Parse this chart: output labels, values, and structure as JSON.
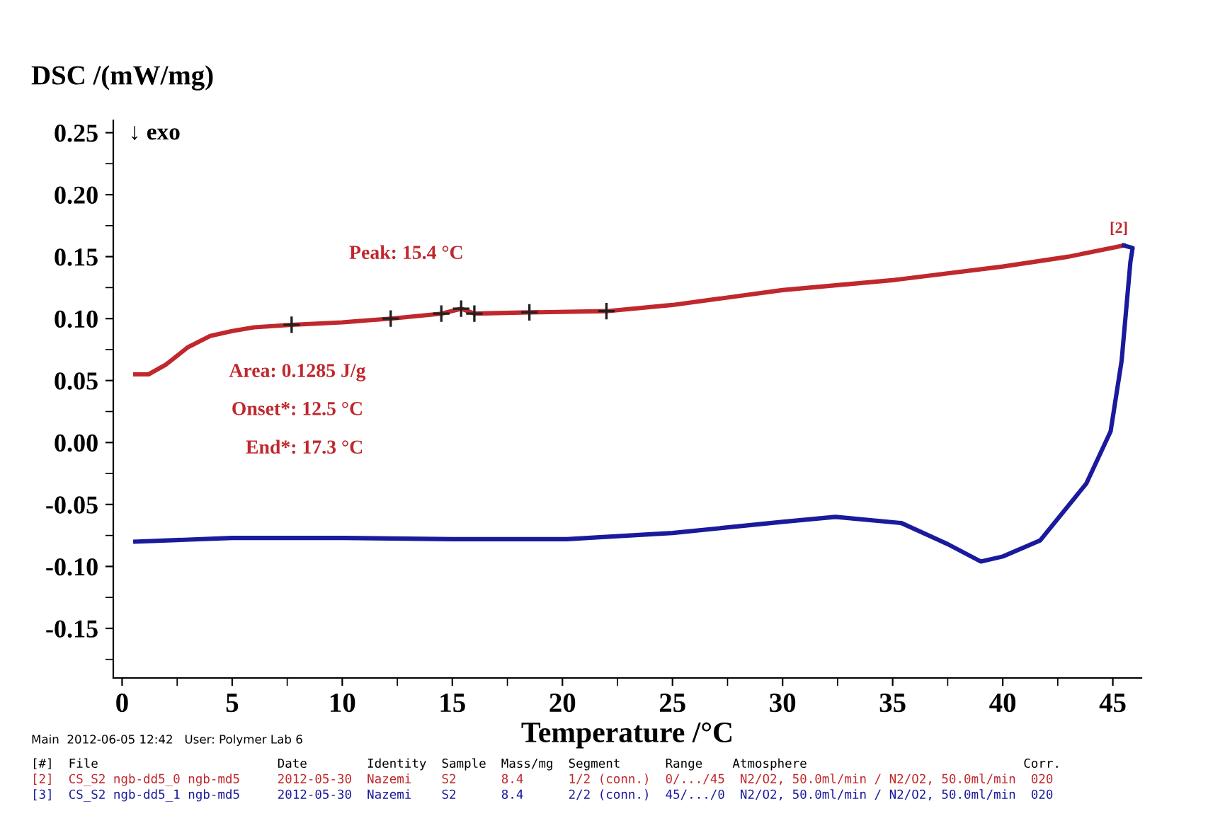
{
  "chart_data": {
    "type": "line",
    "ylabel": "DSC /(mW/mg)",
    "xlabel": "Temperature /°C",
    "xlim": [
      -0.4,
      46.3
    ],
    "ylim": [
      -0.19,
      0.26
    ],
    "xticks": [
      0,
      5,
      10,
      15,
      20,
      25,
      30,
      35,
      40,
      45
    ],
    "yticks": [
      {
        "value": 0.25,
        "label": "0.25"
      },
      {
        "value": 0.2,
        "label": "0.20"
      },
      {
        "value": 0.15,
        "label": "0.15"
      },
      {
        "value": 0.1,
        "label": "0.10"
      },
      {
        "value": 0.05,
        "label": "0.05"
      },
      {
        "value": 0,
        "label": "0.00"
      },
      {
        "value": -0.05,
        "label": "-0.05"
      },
      {
        "value": -0.1,
        "label": "-0.10"
      },
      {
        "value": -0.15,
        "label": "-0.15"
      }
    ],
    "grid": false,
    "legend": false,
    "series": [
      {
        "color": "#c0282d",
        "x": [
          0.6,
          1.2,
          2,
          3,
          4,
          5,
          6,
          7.7,
          10,
          12.2,
          14.5,
          15.4,
          16,
          18.5,
          22,
          25,
          30,
          35,
          40,
          43,
          45.5
        ],
        "values": [
          0.055,
          0.055,
          0.063,
          0.077,
          0.086,
          0.09,
          0.093,
          0.095,
          0.097,
          0.1,
          0.104,
          0.108,
          0.104,
          0.105,
          0.106,
          0.111,
          0.123,
          0.131,
          0.142,
          0.15,
          0.159
        ]
      },
      {
        "color": "#1a1a9c",
        "x": [
          45.5,
          45.9,
          45.8,
          45.4,
          44.9,
          43.8,
          41.7,
          40,
          39,
          37.5,
          35.4,
          32.4,
          30,
          25,
          20.2,
          15,
          10,
          5,
          0.6
        ],
        "values": [
          0.159,
          0.157,
          0.146,
          0.066,
          0.009,
          -0.033,
          -0.079,
          -0.092,
          -0.096,
          -0.082,
          -0.065,
          -0.06,
          -0.064,
          -0.073,
          -0.078,
          -0.078,
          -0.077,
          -0.077,
          -0.08
        ]
      },
      {
        "type": "scatter",
        "marker": "cross",
        "color": "#202020",
        "x": [
          7.7,
          12.2,
          14.5,
          15.4,
          16,
          18.5,
          22
        ],
        "values": [
          0.095,
          0.1,
          0.104,
          0.108,
          0.104,
          0.105,
          0.106
        ]
      }
    ],
    "annotations": [
      "↓ exo",
      "Main  2012-06-05 12:42   User: Polymer Lab 6",
      "[#]  File                        Date        Identity  Sample  Mass/mg  Segment      Range    Atmosphere                             Corr.",
      "[2]  CS_S2 ngb-dd5_0 ngb-md5     2012-05-30  Nazemi    S2      8.4      1/2 (conn.)  0/.../45  N2/O2, 50.0ml/min / N2/O2, 50.0ml/min  020",
      "[3]  CS_S2 ngb-dd5_1 ngb-md5     2012-05-30  Nazemi    S2      8.4      2/2 (conn.)  45/.../0  N2/O2, 50.0ml/min / N2/O2, 50.0ml/min  020",
      "Peak: 15.4 °C",
      "Area: 0.1285 J/g",
      "Onset*: 12.5 °C",
      "End*: 17.3 °C",
      "[2]"
    ]
  }
}
